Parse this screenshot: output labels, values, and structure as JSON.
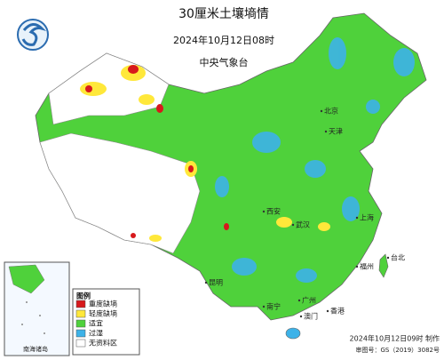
{
  "header": {
    "title": "30厘米土壤墒情",
    "subtitle": "2024年10月12日08时",
    "agency": "中央气象台"
  },
  "legend": {
    "title": "图例",
    "items": [
      {
        "label": "重度缺墒",
        "color": "#d7191c"
      },
      {
        "label": "轻度缺墒",
        "color": "#ffe83a"
      },
      {
        "label": "适宜",
        "color": "#4fd13b"
      },
      {
        "label": "过湿",
        "color": "#3db2e8"
      },
      {
        "label": "无资料区",
        "color": "#ffffff"
      }
    ]
  },
  "inset": {
    "label": "南海诸岛"
  },
  "cities": [
    "北京",
    "天津",
    "西安",
    "武汉",
    "上海",
    "昆明",
    "南宁",
    "广州",
    "香港",
    "澳门",
    "福州",
    "台北"
  ],
  "footer": {
    "made": "2024年10月12日09时 制作",
    "review": "审图号：GS（2019）3082号"
  }
}
